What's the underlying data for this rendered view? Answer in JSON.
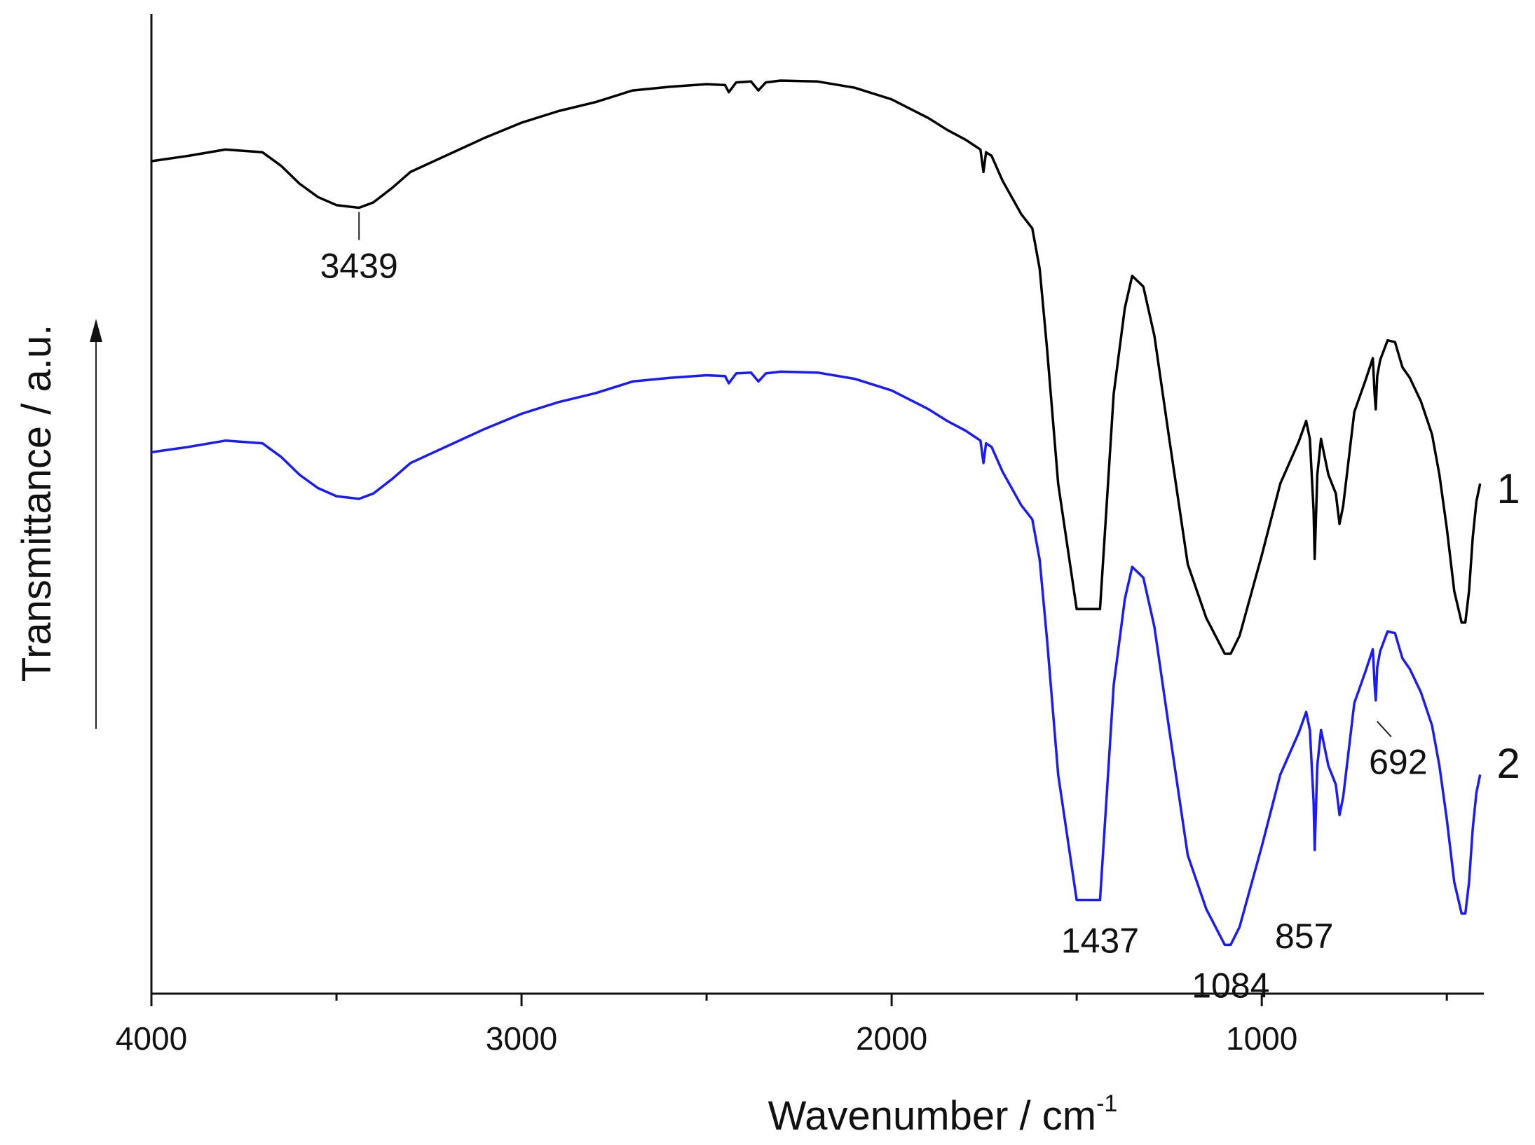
{
  "chart_data": {
    "type": "line",
    "xlabel": "Wavenumber / cm",
    "xlabel_superscript": "-1",
    "ylabel": "Transmittance / a.u.",
    "xlim": [
      4000,
      400
    ],
    "x_reversed": true,
    "ylim": [
      0,
      100
    ],
    "y_ticks_shown": false,
    "grid": false,
    "x_ticks": [
      4000,
      3000,
      2000,
      1000
    ],
    "x_tick_labels": [
      "4000",
      "3000",
      "2000",
      "1000"
    ],
    "x_minor_ticks": [
      3500,
      2500,
      1500,
      500
    ],
    "series": [
      {
        "name": "1",
        "color": "#000000",
        "x": [
          4000,
          3900,
          3800,
          3700,
          3650,
          3600,
          3550,
          3500,
          3439,
          3400,
          3350,
          3300,
          3200,
          3100,
          3000,
          2900,
          2800,
          2700,
          2600,
          2500,
          2450,
          2440,
          2420,
          2380,
          2360,
          2340,
          2300,
          2200,
          2100,
          2000,
          1900,
          1850,
          1800,
          1760,
          1752,
          1745,
          1730,
          1700,
          1650,
          1620,
          1600,
          1580,
          1550,
          1500,
          1470,
          1437,
          1420,
          1400,
          1370,
          1350,
          1320,
          1290,
          1250,
          1200,
          1150,
          1100,
          1084,
          1060,
          1000,
          950,
          900,
          880,
          870,
          860,
          857,
          850,
          840,
          820,
          800,
          790,
          780,
          770,
          750,
          720,
          700,
          695,
          692,
          688,
          680,
          660,
          640,
          620,
          600,
          570,
          540,
          520,
          500,
          480,
          460,
          450,
          440,
          430,
          420,
          410
        ],
        "y": [
          84.0,
          84.6,
          85.3,
          85.0,
          83.5,
          81.5,
          80.0,
          79.1,
          78.8,
          79.4,
          81.0,
          82.8,
          84.7,
          86.6,
          88.3,
          89.6,
          90.6,
          91.9,
          92.3,
          92.6,
          92.5,
          91.7,
          92.8,
          92.9,
          91.9,
          92.8,
          93.0,
          92.9,
          92.2,
          90.9,
          88.8,
          87.5,
          86.4,
          85.3,
          82.8,
          85.0,
          84.6,
          81.8,
          78.1,
          76.5,
          72.0,
          63.0,
          48.0,
          34.0,
          34.0,
          34.0,
          45.0,
          58.0,
          67.6,
          71.2,
          70.0,
          64.5,
          53.0,
          39.0,
          33.0,
          29.0,
          29.0,
          31.0,
          40.0,
          48.0,
          52.7,
          55.0,
          53.0,
          45.0,
          39.6,
          49.0,
          53.0,
          49.0,
          46.9,
          43.5,
          45.5,
          49.0,
          56.0,
          59.5,
          62.0,
          58.0,
          56.3,
          60.0,
          61.8,
          64.0,
          63.8,
          61.0,
          59.8,
          57.2,
          53.5,
          49.0,
          43.0,
          36.0,
          32.5,
          32.5,
          36.0,
          42.0,
          46.0,
          48.0
        ]
      },
      {
        "name": "2",
        "color": "#1a1aff",
        "x": [
          4000,
          3900,
          3800,
          3700,
          3650,
          3600,
          3550,
          3500,
          3439,
          3400,
          3350,
          3300,
          3200,
          3100,
          3000,
          2900,
          2800,
          2700,
          2600,
          2500,
          2450,
          2440,
          2420,
          2380,
          2360,
          2340,
          2300,
          2200,
          2100,
          2000,
          1900,
          1850,
          1800,
          1760,
          1752,
          1745,
          1730,
          1700,
          1650,
          1620,
          1600,
          1580,
          1550,
          1500,
          1470,
          1437,
          1420,
          1400,
          1370,
          1350,
          1320,
          1290,
          1250,
          1200,
          1150,
          1100,
          1084,
          1060,
          1000,
          950,
          900,
          880,
          870,
          860,
          857,
          850,
          840,
          820,
          800,
          790,
          780,
          770,
          750,
          720,
          700,
          695,
          692,
          688,
          680,
          660,
          640,
          620,
          600,
          570,
          540,
          520,
          500,
          480,
          460,
          450,
          440,
          430,
          420,
          410
        ],
        "y": [
          84.0,
          84.6,
          85.3,
          85.0,
          83.5,
          81.5,
          80.0,
          79.1,
          78.8,
          79.4,
          81.0,
          82.8,
          84.7,
          86.6,
          88.3,
          89.6,
          90.6,
          91.9,
          92.3,
          92.6,
          92.5,
          91.7,
          92.8,
          92.9,
          91.9,
          92.8,
          93.0,
          92.9,
          92.2,
          90.9,
          88.8,
          87.5,
          86.4,
          85.3,
          82.8,
          85.0,
          84.6,
          81.8,
          78.1,
          76.5,
          72.0,
          63.0,
          48.0,
          34.0,
          34.0,
          34.0,
          45.0,
          58.0,
          67.6,
          71.2,
          70.0,
          64.5,
          53.0,
          39.0,
          33.0,
          29.0,
          29.0,
          31.0,
          40.0,
          48.0,
          52.7,
          55.0,
          53.0,
          45.0,
          39.6,
          49.0,
          53.0,
          49.0,
          46.9,
          43.5,
          45.5,
          49.0,
          56.0,
          59.5,
          62.0,
          58.0,
          56.3,
          60.0,
          61.8,
          64.0,
          63.8,
          61.0,
          59.8,
          57.2,
          53.5,
          49.0,
          43.0,
          36.0,
          32.5,
          32.5,
          36.0,
          42.0,
          46.0,
          48.0
        ],
        "vertical_offset": -32.5
      }
    ],
    "annotations": [
      {
        "text": "3439",
        "x": 3439,
        "series": "1"
      },
      {
        "text": "1437",
        "x": 1437,
        "series": "2"
      },
      {
        "text": "1084",
        "x": 1084,
        "series": "2"
      },
      {
        "text": "857",
        "x": 857,
        "series": "2"
      },
      {
        "text": "692",
        "x": 692,
        "series": "2"
      }
    ],
    "series_labels": [
      "1",
      "2"
    ]
  }
}
